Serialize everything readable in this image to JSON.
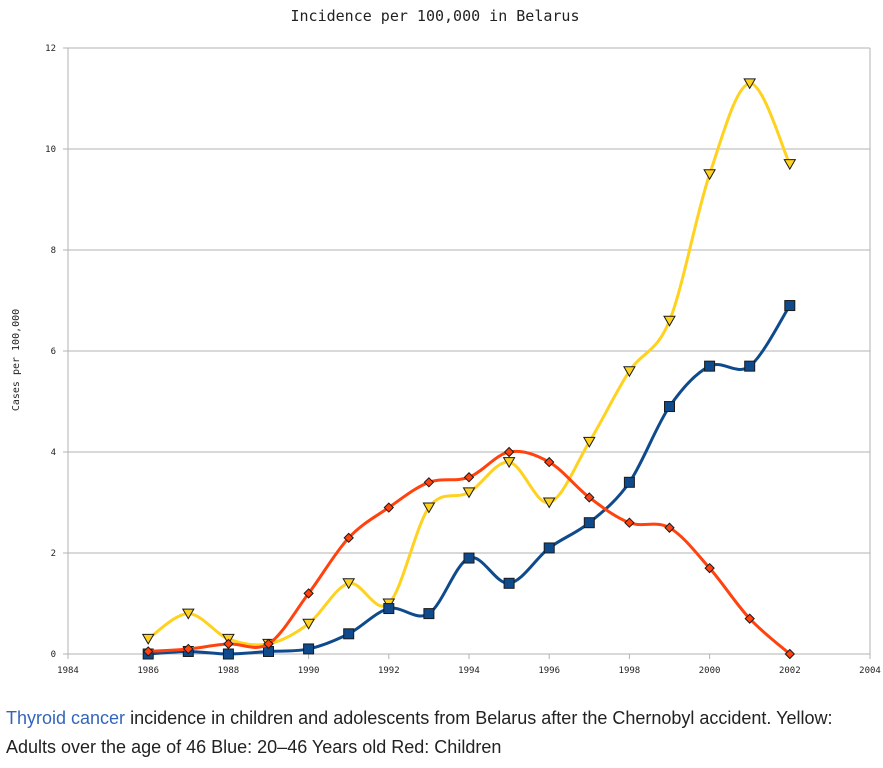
{
  "chart_data": {
    "type": "line",
    "title": "Incidence per 100,000 in Belarus",
    "xlabel": "",
    "ylabel": "Cases per 100,000",
    "xlim": [
      1984,
      2004
    ],
    "ylim": [
      0,
      12
    ],
    "x_ticks": [
      1984,
      1986,
      1988,
      1990,
      1992,
      1994,
      1996,
      1998,
      2000,
      2002,
      2004
    ],
    "y_ticks": [
      0,
      2,
      4,
      6,
      8,
      10,
      12
    ],
    "grid": true,
    "x": [
      1986,
      1987,
      1988,
      1989,
      1990,
      1991,
      1992,
      1993,
      1994,
      1995,
      1996,
      1997,
      1998,
      1999,
      2000,
      2001,
      2002
    ],
    "series": [
      {
        "color": "#ffd21f",
        "marker": "triangle-down",
        "values": [
          0.3,
          0.8,
          0.3,
          0.2,
          0.6,
          1.4,
          1.0,
          2.9,
          3.2,
          3.8,
          3.0,
          4.2,
          5.6,
          6.6,
          9.5,
          11.3,
          9.7
        ]
      },
      {
        "color": "#0e4a8c",
        "marker": "square",
        "values": [
          0.0,
          0.05,
          0.0,
          0.05,
          0.1,
          0.4,
          0.9,
          0.8,
          1.9,
          1.4,
          2.1,
          2.6,
          3.4,
          4.9,
          5.7,
          5.7,
          6.9
        ]
      },
      {
        "color": "#ff420e",
        "marker": "diamond",
        "values": [
          0.05,
          0.1,
          0.2,
          0.2,
          1.2,
          2.3,
          2.9,
          3.4,
          3.5,
          4.0,
          3.8,
          3.1,
          2.6,
          2.5,
          1.7,
          0.7,
          0.0
        ]
      }
    ]
  },
  "caption": {
    "link": "Thyroid cancer",
    "text": " incidence in children and adolescents from Belarus after the Chernobyl accident. Yellow: Adults over the age of 46 Blue: 20–46 Years old Red: Children"
  }
}
